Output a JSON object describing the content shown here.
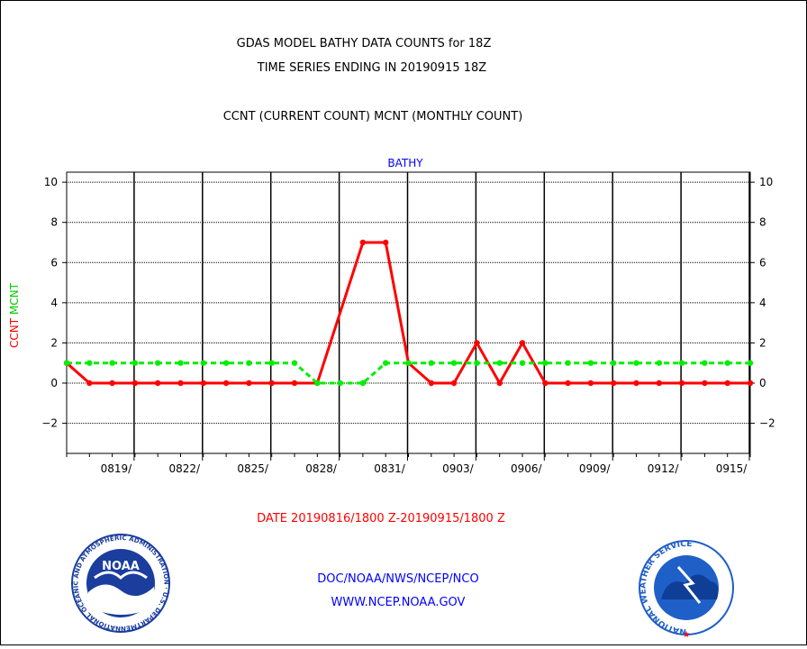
{
  "header": {
    "title_line1": "GDAS MODEL BATHY DATA COUNTS for 18Z",
    "title_line2": "TIME SERIES ENDING IN 20190915 18Z",
    "subtitle": "CCNT (CURRENT COUNT) MCNT (MONTHLY COUNT)"
  },
  "chart_data": {
    "type": "line",
    "title": "BATHY",
    "ylabel_ccnt": "CCNT",
    "ylabel_mcnt": "MCNT",
    "ylim": [
      -3.5,
      10.5
    ],
    "yticks": [
      -2,
      0,
      2,
      4,
      6,
      8,
      10
    ],
    "xlabel": "DATE 20190816/1800 Z-20190915/1800 Z",
    "xtick_labels": [
      "0819/",
      "0822/",
      "0825/",
      "0828/",
      "0831/",
      "0903/",
      "0906/",
      "0909/",
      "0912/",
      "0915/"
    ],
    "x_dates": [
      "0816",
      "0817",
      "0818",
      "0819",
      "0820",
      "0821",
      "0822",
      "0823",
      "0824",
      "0825",
      "0826",
      "0827",
      "0828",
      "0829",
      "0830",
      "0831",
      "0901",
      "0902",
      "0903",
      "0904",
      "0905",
      "0906",
      "0907",
      "0908",
      "0909",
      "0910",
      "0911",
      "0912",
      "0913",
      "0914",
      "0915"
    ],
    "grid": true,
    "series": [
      {
        "name": "CCNT",
        "color": "#ff0000",
        "style": "solid",
        "values": [
          1,
          0,
          0,
          0,
          0,
          0,
          0,
          0,
          0,
          0,
          0,
          0,
          null,
          7,
          7,
          1,
          0,
          0,
          2,
          0,
          2,
          0,
          0,
          0,
          0,
          0,
          0,
          0,
          0,
          0,
          0
        ]
      },
      {
        "name": "MCNT",
        "color": "#00ff00",
        "style": "dashed",
        "values": [
          1,
          1,
          1,
          1,
          1,
          1,
          1,
          1,
          1,
          1,
          1,
          0,
          0,
          0,
          1,
          1,
          1,
          1,
          1,
          1,
          1,
          1,
          1,
          1,
          1,
          1,
          1,
          1,
          1,
          1,
          1
        ]
      }
    ]
  },
  "footer": {
    "agency_line": "DOC/NOAA/NWS/NCEP/NCO",
    "url_line": "WWW.NCEP.NOAA.GOV",
    "noaa_logo_text": "NOAA",
    "noaa_ring_text": "NATIONAL OCEANIC AND ATMOSPHERIC ADMINISTRATION · U.S. DEPARTMENT OF COMMERCE ·",
    "nws_ring_text": "NATIONAL WEATHER SERVICE"
  },
  "colors": {
    "ccnt": "#ff0000",
    "mcnt": "#00ff00",
    "blue_text": "#0000ff",
    "grid": "#000000",
    "noaa_blue": "#1a3d9e",
    "nws_blue": "#1f5fc8"
  }
}
